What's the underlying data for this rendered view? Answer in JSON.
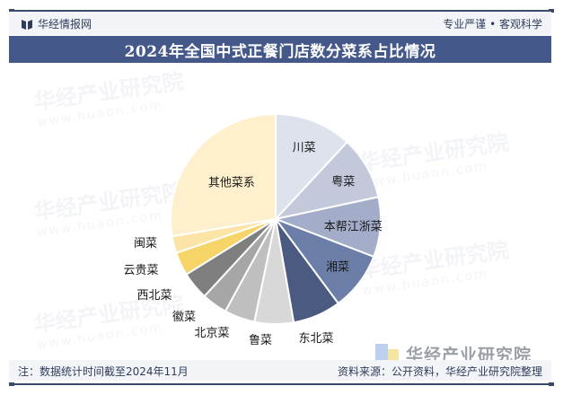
{
  "header": {
    "brand": "华经情报网",
    "slogan": "专业严谨 • 客观科学"
  },
  "title": "2024年全国中式正餐门店数分菜系占比情况",
  "footer": {
    "note": "注：数据统计时间截至2024年11月",
    "source": "资料来源：公开资料，华经产业研究院整理"
  },
  "watermark": {
    "text": "华经产业研究院",
    "url": "www.huaon.com"
  },
  "logo": {
    "text": "华经产业研究院"
  },
  "chart_data": {
    "type": "pie",
    "title": "2024年全国中式正餐门店数分菜系占比情况",
    "start_angle_deg": 0,
    "direction": "clockwise",
    "unit": "%",
    "categories": [
      "川菜",
      "粤菜",
      "本帮江浙菜",
      "湘菜",
      "东北菜",
      "鲁菜",
      "北京菜",
      "徽菜",
      "西北菜",
      "云贵菜",
      "闽菜",
      "其他菜系"
    ],
    "values": [
      11.9,
      9.7,
      9.2,
      9.0,
      7.4,
      6.0,
      4.7,
      3.9,
      4.3,
      3.6,
      2.6,
      27.6
    ],
    "colors": [
      "#dde2ec",
      "#c3c9db",
      "#a3adc9",
      "#6a7ea8",
      "#4a5a80",
      "#d8d8d8",
      "#bfbfbf",
      "#a6a6a6",
      "#7f7f7f",
      "#f6d467",
      "#fbe4a6",
      "#fef0cc"
    ],
    "labels_inside": [
      true,
      true,
      true,
      true,
      false,
      false,
      false,
      false,
      false,
      false,
      false,
      true
    ],
    "data_labels_shown": false,
    "legend": "none"
  }
}
